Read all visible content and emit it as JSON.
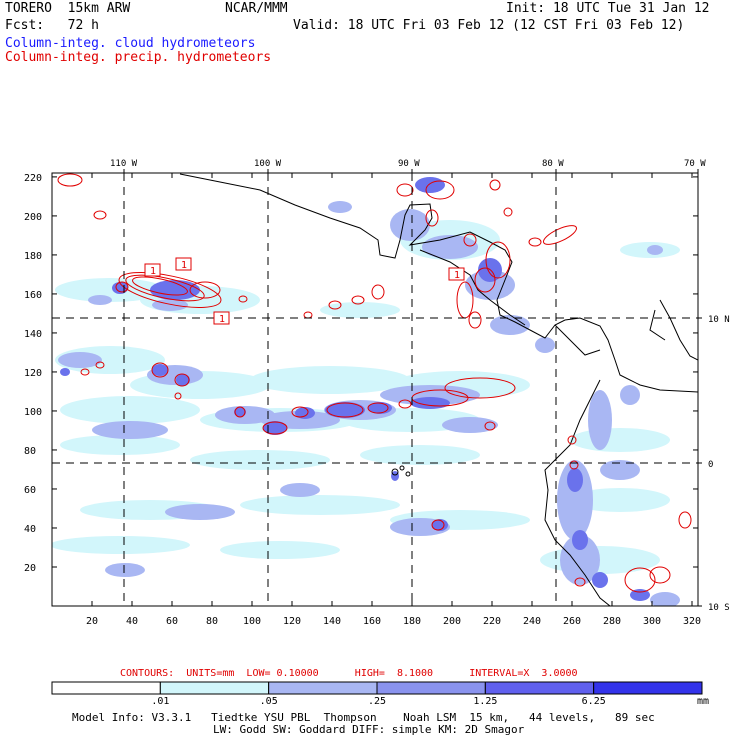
{
  "header": {
    "model": "TORERO  15km ARW",
    "org": "NCAR/MMM",
    "init": "Init: 18 UTC Tue 31 Jan 12",
    "fcst": "Fcst:   72 h",
    "valid": "Valid: 18 UTC Fri 03 Feb 12 (12 CST Fri 03 Feb 12)",
    "field1": "Column-integ. cloud hydrometeors",
    "field2": "Column-integ. precip. hydrometeors"
  },
  "map": {
    "lon_labels": [
      "110 W",
      "100 W",
      "90 W",
      "80 W",
      "70 W"
    ],
    "lat_labels": [
      "10 N",
      "0",
      "10 S"
    ],
    "y_ticks": [
      "220",
      "200",
      "180",
      "160",
      "140",
      "120",
      "100",
      "80",
      "60",
      "40",
      "20"
    ],
    "x_ticks": [
      "20",
      "40",
      "60",
      "80",
      "100",
      "120",
      "140",
      "160",
      "180",
      "200",
      "220",
      "240",
      "260",
      "280",
      "300",
      "320"
    ],
    "contour_labels": [
      "1",
      "1",
      "1",
      "1"
    ]
  },
  "contour_info": {
    "line": "CONTOURS:  UNITS=mm  LOW= 0.10000      HIGH=  8.1000      INTERVAL=X  3.0000"
  },
  "colorbar": {
    "labels": [
      ".01",
      ".05",
      ".25",
      "1.25",
      "6.25"
    ],
    "units": "mm",
    "colors": [
      "#ffffff",
      "#d2f6fb",
      "#a9b7f3",
      "#8a93ee",
      "#6060ee",
      "#3333ea"
    ]
  },
  "footer": {
    "line1": "Model Info: V3.3.1   Tiedtke YSU PBL  Thompson    Noah LSM  15 km,   44 levels,   89 sec",
    "line2": "LW: Godd SW: Goddard DIFF: simple KM: 2D Smagor"
  }
}
